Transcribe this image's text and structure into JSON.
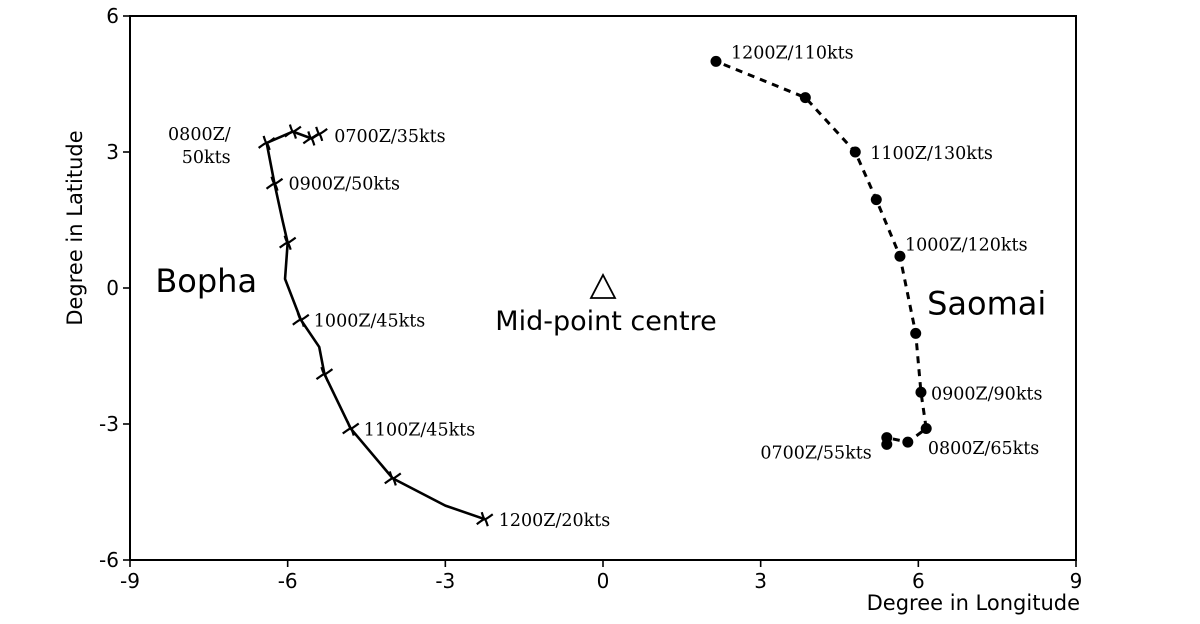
{
  "chart_data": {
    "type": "line",
    "title": "",
    "xlabel": "Degree in Longitude",
    "ylabel": "Degree in Latitude",
    "xlim": [
      -9,
      9
    ],
    "ylim": [
      -6,
      6
    ],
    "xticks": [
      -9,
      -6,
      -3,
      0,
      3,
      6,
      9
    ],
    "yticks": [
      -6,
      -3,
      0,
      3,
      6
    ],
    "xtick_labels": [
      "-9",
      "-6",
      "-3",
      "0",
      "3",
      "6",
      "9"
    ],
    "ytick_labels": [
      "-6",
      "-3",
      "0",
      "3",
      "6"
    ],
    "grid": false,
    "center_marker": {
      "x": 0,
      "y": 0,
      "symbol": "triangle",
      "label": "Mid-point centre"
    },
    "series": [
      {
        "name": "Bopha",
        "line_style": "solid",
        "marker": "typhoon-symbol",
        "x": [
          -5.4,
          -5.55,
          -5.9,
          -6.4,
          -6.25,
          -6.1,
          -6.0,
          -6.05,
          -5.75,
          -5.4,
          -5.3,
          -4.8,
          -4.0,
          -3.0,
          -2.25
        ],
        "y": [
          3.4,
          3.3,
          3.45,
          3.2,
          2.3,
          1.5,
          1.0,
          0.2,
          -0.7,
          -1.3,
          -1.9,
          -3.1,
          -4.2,
          -4.8,
          -5.1
        ],
        "marker_points": {
          "x": [
            -5.4,
            -5.55,
            -5.9,
            -6.4,
            -6.25,
            -6.0,
            -5.75,
            -5.3,
            -4.8,
            -4.0,
            -2.25
          ],
          "y": [
            3.4,
            3.3,
            3.45,
            3.2,
            2.3,
            1.0,
            -0.7,
            -1.9,
            -3.1,
            -4.2,
            -5.1
          ]
        },
        "annotations": [
          {
            "text": "0700Z/35kts",
            "x": -5.4,
            "y": 3.4
          },
          {
            "text": "0800Z/",
            "x": -6.4,
            "y": 3.2
          },
          {
            "text": "50kts",
            "x": -6.4,
            "y": 3.2
          },
          {
            "text": "0900Z/50kts",
            "x": -6.25,
            "y": 2.3
          },
          {
            "text": "1000Z/45kts",
            "x": -5.75,
            "y": -0.7
          },
          {
            "text": "1100Z/45kts",
            "x": -4.8,
            "y": -3.1
          },
          {
            "text": "1200Z/20kts",
            "x": -2.25,
            "y": -5.1
          }
        ]
      },
      {
        "name": "Saomai",
        "line_style": "dashed",
        "marker": "circle",
        "x": [
          5.4,
          5.4,
          5.8,
          6.15,
          6.05,
          5.95,
          5.65,
          5.2,
          4.8,
          3.85,
          2.15
        ],
        "y": [
          -3.45,
          -3.3,
          -3.4,
          -3.1,
          -2.3,
          -1.0,
          0.7,
          1.95,
          3.0,
          4.2,
          5.0
        ],
        "annotations": [
          {
            "text": "0700Z/55kts",
            "x": 5.4,
            "y": -3.45
          },
          {
            "text": "0800Z/65kts",
            "x": 5.8,
            "y": -3.4
          },
          {
            "text": "0900Z/90kts",
            "x": 6.05,
            "y": -2.3
          },
          {
            "text": "1000Z/120kts",
            "x": 5.65,
            "y": 0.7
          },
          {
            "text": "1100Z/130kts",
            "x": 4.8,
            "y": 3.0
          },
          {
            "text": "1200Z/110kts",
            "x": 2.15,
            "y": 5.0
          }
        ]
      }
    ]
  }
}
